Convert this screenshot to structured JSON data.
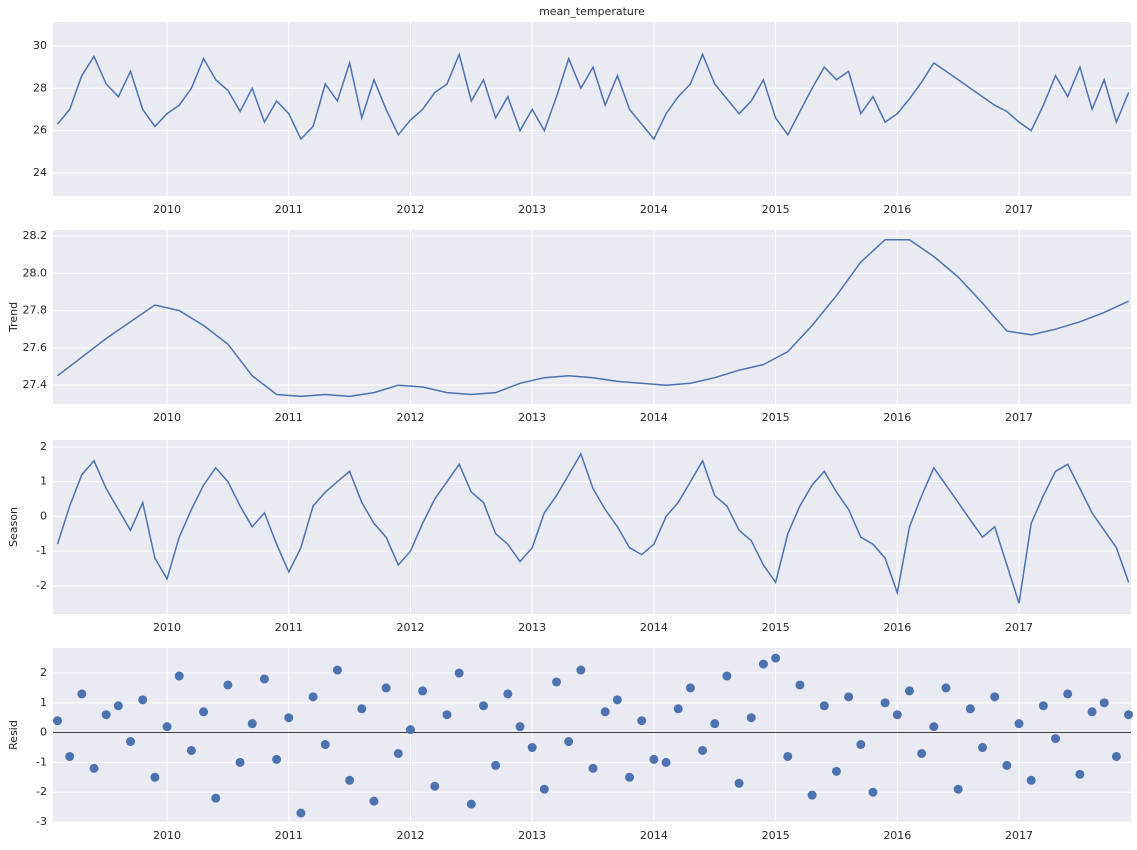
{
  "chart_data": [
    {
      "type": "line",
      "title": "mean_temperature",
      "color": "#4c72b0",
      "grid": true,
      "xlim": [
        2009.063,
        2017.92
      ],
      "xticks": [
        2010,
        2011,
        2012,
        2013,
        2014,
        2015,
        2016,
        2017
      ],
      "ylim": [
        22.91,
        31.13
      ],
      "yticks": [
        24,
        26,
        28,
        30
      ],
      "x": [
        2009.1,
        2009.2,
        2009.3,
        2009.4,
        2009.5,
        2009.6,
        2009.7,
        2009.8,
        2009.9,
        2010.0,
        2010.1,
        2010.2,
        2010.3,
        2010.4,
        2010.5,
        2010.6,
        2010.7,
        2010.8,
        2010.9,
        2011.0,
        2011.1,
        2011.2,
        2011.3,
        2011.4,
        2011.5,
        2011.6,
        2011.7,
        2011.8,
        2011.9,
        2012.0,
        2012.1,
        2012.2,
        2012.3,
        2012.4,
        2012.5,
        2012.6,
        2012.7,
        2012.8,
        2012.9,
        2013.0,
        2013.1,
        2013.2,
        2013.3,
        2013.4,
        2013.5,
        2013.6,
        2013.7,
        2013.8,
        2013.9,
        2014.0,
        2014.1,
        2014.2,
        2014.3,
        2014.4,
        2014.5,
        2014.6,
        2014.7,
        2014.8,
        2014.9,
        2015.0,
        2015.1,
        2015.2,
        2015.3,
        2015.4,
        2015.5,
        2015.6,
        2015.7,
        2015.8,
        2015.9,
        2016.0,
        2016.1,
        2016.2,
        2016.3,
        2016.4,
        2016.5,
        2016.6,
        2016.7,
        2016.8,
        2016.9,
        2017.0,
        2017.1,
        2017.2,
        2017.3,
        2017.4,
        2017.5,
        2017.6,
        2017.7,
        2017.8,
        2017.9
      ],
      "values": [
        26.3,
        27.0,
        28.6,
        29.5,
        28.2,
        27.6,
        28.8,
        27.0,
        26.2,
        26.8,
        27.2,
        28.0,
        29.4,
        28.4,
        27.9,
        26.9,
        28.0,
        26.4,
        27.4,
        26.8,
        25.6,
        26.2,
        28.2,
        27.4,
        29.2,
        26.6,
        28.4,
        27.0,
        25.8,
        26.5,
        27.0,
        27.8,
        28.2,
        29.6,
        27.4,
        28.4,
        26.6,
        27.6,
        26.0,
        27.0,
        26.0,
        27.6,
        29.4,
        28.0,
        29.0,
        27.2,
        28.6,
        27.0,
        26.3,
        25.6,
        26.8,
        27.6,
        28.2,
        29.6,
        28.2,
        27.5,
        26.8,
        27.4,
        28.4,
        26.6,
        25.8,
        26.9,
        28.0,
        29.0,
        28.4,
        28.8,
        26.8,
        27.6,
        26.4,
        26.8,
        27.5,
        28.3,
        29.2,
        28.8,
        28.4,
        28.0,
        27.6,
        27.2,
        26.9,
        26.4,
        26.0,
        27.2,
        28.6,
        27.6,
        29.0,
        27.0,
        28.4,
        26.4,
        27.8
      ]
    },
    {
      "type": "line",
      "ylabel": "Trend",
      "color": "#4c72b0",
      "grid": true,
      "xlim": [
        2009.063,
        2017.92
      ],
      "xticks": [
        2010,
        2011,
        2012,
        2013,
        2014,
        2015,
        2016,
        2017
      ],
      "ylim": [
        27.299,
        28.232
      ],
      "yticks": [
        27.4,
        27.6,
        27.8,
        {
          "value": 28,
          "label": "28.0"
        },
        28.2
      ],
      "x": [
        2009.1,
        2009.3,
        2009.5,
        2009.7,
        2009.9,
        2010.1,
        2010.3,
        2010.5,
        2010.7,
        2010.9,
        2011.1,
        2011.3,
        2011.5,
        2011.7,
        2011.9,
        2012.1,
        2012.3,
        2012.5,
        2012.7,
        2012.9,
        2013.1,
        2013.3,
        2013.5,
        2013.7,
        2013.9,
        2014.1,
        2014.3,
        2014.5,
        2014.7,
        2014.9,
        2015.1,
        2015.3,
        2015.5,
        2015.7,
        2015.9,
        2016.1,
        2016.3,
        2016.5,
        2016.7,
        2016.9,
        2017.1,
        2017.3,
        2017.5,
        2017.7,
        2017.9
      ],
      "values": [
        27.45,
        27.55,
        27.65,
        27.74,
        27.83,
        27.8,
        27.72,
        27.62,
        27.45,
        27.35,
        27.34,
        27.35,
        27.34,
        27.36,
        27.4,
        27.39,
        27.36,
        27.35,
        27.36,
        27.41,
        27.44,
        27.45,
        27.44,
        27.42,
        27.41,
        27.4,
        27.41,
        27.44,
        27.48,
        27.51,
        27.58,
        27.72,
        27.88,
        28.06,
        28.18,
        28.18,
        28.09,
        27.98,
        27.84,
        27.69,
        27.67,
        27.7,
        27.74,
        27.79,
        27.85
      ]
    },
    {
      "type": "line",
      "ylabel": "Season",
      "color": "#4c72b0",
      "grid": true,
      "xlim": [
        2009.063,
        2017.92
      ],
      "xticks": [
        2010,
        2011,
        2012,
        2013,
        2014,
        2015,
        2016,
        2017
      ],
      "ylim": [
        -2.81,
        2.2
      ],
      "yticks": [
        -2,
        -1,
        0,
        1,
        2
      ],
      "x": [
        2009.1,
        2009.2,
        2009.3,
        2009.4,
        2009.5,
        2009.6,
        2009.7,
        2009.8,
        2009.9,
        2010.0,
        2010.1,
        2010.2,
        2010.3,
        2010.4,
        2010.5,
        2010.6,
        2010.7,
        2010.8,
        2010.9,
        2011.0,
        2011.1,
        2011.2,
        2011.3,
        2011.4,
        2011.5,
        2011.6,
        2011.7,
        2011.8,
        2011.9,
        2012.0,
        2012.1,
        2012.2,
        2012.3,
        2012.4,
        2012.5,
        2012.6,
        2012.7,
        2012.8,
        2012.9,
        2013.0,
        2013.1,
        2013.2,
        2013.3,
        2013.4,
        2013.5,
        2013.6,
        2013.7,
        2013.8,
        2013.9,
        2014.0,
        2014.1,
        2014.2,
        2014.3,
        2014.4,
        2014.5,
        2014.6,
        2014.7,
        2014.8,
        2014.9,
        2015.0,
        2015.1,
        2015.2,
        2015.3,
        2015.4,
        2015.5,
        2015.6,
        2015.7,
        2015.8,
        2015.9,
        2016.0,
        2016.1,
        2016.2,
        2016.3,
        2016.4,
        2016.5,
        2016.6,
        2016.7,
        2016.8,
        2016.9,
        2017.0,
        2017.1,
        2017.2,
        2017.3,
        2017.4,
        2017.5,
        2017.6,
        2017.7,
        2017.8,
        2017.9
      ],
      "values": [
        -0.8,
        0.3,
        1.2,
        1.6,
        0.8,
        0.2,
        -0.4,
        0.4,
        -1.2,
        -1.8,
        -0.6,
        0.2,
        0.9,
        1.4,
        1.0,
        0.3,
        -0.3,
        0.1,
        -0.8,
        -1.6,
        -0.9,
        0.3,
        0.7,
        1.0,
        1.3,
        0.4,
        -0.2,
        -0.6,
        -1.4,
        -1.0,
        -0.2,
        0.5,
        1.0,
        1.5,
        0.7,
        0.4,
        -0.5,
        -0.8,
        -1.3,
        -0.9,
        0.1,
        0.6,
        1.2,
        1.8,
        0.8,
        0.2,
        -0.3,
        -0.9,
        -1.1,
        -0.8,
        0.0,
        0.4,
        1.0,
        1.6,
        0.6,
        0.3,
        -0.4,
        -0.7,
        -1.4,
        -1.9,
        -0.5,
        0.3,
        0.9,
        1.3,
        0.7,
        0.2,
        -0.6,
        -0.8,
        -1.2,
        -2.2,
        -0.3,
        0.6,
        1.4,
        0.9,
        0.4,
        -0.1,
        -0.6,
        -0.3,
        -1.4,
        -2.5,
        -0.2,
        0.6,
        1.3,
        1.5,
        0.8,
        0.1,
        -0.4,
        -0.9,
        -1.9
      ]
    },
    {
      "type": "scatter",
      "ylabel": "Resid",
      "color": "#4c72b0",
      "grid": true,
      "xlim": [
        2009.063,
        2017.92
      ],
      "xticks": [
        2010,
        2011,
        2012,
        2013,
        2014,
        2015,
        2016,
        2017
      ],
      "ylim": [
        -3,
        2.84
      ],
      "yticks": [
        -3,
        -2,
        -1,
        0,
        1,
        2
      ],
      "x": [
        2009.1,
        2009.2,
        2009.3,
        2009.4,
        2009.5,
        2009.6,
        2009.7,
        2009.8,
        2009.9,
        2010.0,
        2010.1,
        2010.2,
        2010.3,
        2010.4,
        2010.5,
        2010.6,
        2010.7,
        2010.8,
        2010.9,
        2011.0,
        2011.1,
        2011.2,
        2011.3,
        2011.4,
        2011.5,
        2011.6,
        2011.7,
        2011.8,
        2011.9,
        2012.0,
        2012.1,
        2012.2,
        2012.3,
        2012.4,
        2012.5,
        2012.6,
        2012.7,
        2012.8,
        2012.9,
        2013.0,
        2013.1,
        2013.2,
        2013.3,
        2013.4,
        2013.5,
        2013.6,
        2013.7,
        2013.8,
        2013.9,
        2014.0,
        2014.1,
        2014.2,
        2014.3,
        2014.4,
        2014.5,
        2014.6,
        2014.7,
        2014.8,
        2014.9,
        2015.0,
        2015.1,
        2015.2,
        2015.3,
        2015.4,
        2015.5,
        2015.6,
        2015.7,
        2015.8,
        2015.9,
        2016.0,
        2016.1,
        2016.2,
        2016.3,
        2016.4,
        2016.5,
        2016.6,
        2016.7,
        2016.8,
        2016.9,
        2017.0,
        2017.1,
        2017.2,
        2017.3,
        2017.4,
        2017.5,
        2017.6,
        2017.7,
        2017.8,
        2017.9
      ],
      "values": [
        0.4,
        -0.8,
        1.3,
        -1.2,
        0.6,
        0.9,
        -0.3,
        1.1,
        -1.5,
        0.2,
        1.9,
        -0.6,
        0.7,
        -2.2,
        1.6,
        -1.0,
        0.3,
        1.8,
        -0.9,
        0.5,
        -2.7,
        1.2,
        -0.4,
        2.1,
        -1.6,
        0.8,
        -2.3,
        1.5,
        -0.7,
        0.1,
        1.4,
        -1.8,
        0.6,
        2.0,
        -2.4,
        0.9,
        -1.1,
        1.3,
        0.2,
        -0.5,
        -1.9,
        1.7,
        -0.3,
        2.1,
        -1.2,
        0.7,
        1.1,
        -1.5,
        0.4,
        -0.9,
        -1.0,
        0.8,
        1.5,
        -0.6,
        0.3,
        1.9,
        -1.7,
        0.5,
        2.3,
        2.5,
        -0.8,
        1.6,
        -2.1,
        0.9,
        -1.3,
        1.2,
        -0.4,
        -2.0,
        1.0,
        0.6,
        1.4,
        -0.7,
        0.2,
        1.5,
        -1.9,
        0.8,
        -0.5,
        1.2,
        -1.1,
        0.3,
        -1.6,
        0.9,
        -0.2,
        1.3,
        -1.4,
        0.7,
        1.0,
        -0.8,
        0.6
      ]
    }
  ]
}
